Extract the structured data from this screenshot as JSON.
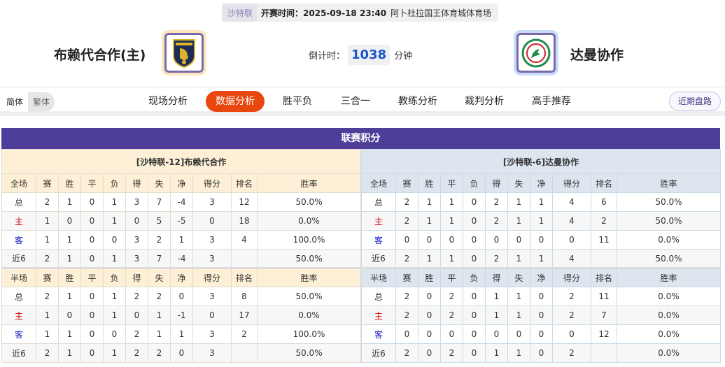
{
  "match": {
    "league": "沙特联",
    "kickoff": "开赛时间：2025-09-18 23:40",
    "venue": "阿卜杜拉国王体育城体育场"
  },
  "home": {
    "name": "布赖代合作(主)",
    "logo": "Al-Taawoun crest"
  },
  "away": {
    "name": "达曼协作",
    "logo": "Al-Ettifaq crest"
  },
  "countdown": {
    "label": "倒计时：",
    "value": "1038",
    "unit": "分钟"
  },
  "lang": {
    "simplified": "简体",
    "traditional": "繁体"
  },
  "tabs": [
    "现场分析",
    "数据分析",
    "胜平负",
    "三合一",
    "教练分析",
    "裁判分析",
    "高手推荐"
  ],
  "active_tab": "数据分析",
  "recent_button": "近期盘路",
  "standings": {
    "title": "联赛积分",
    "columns": [
      "赛",
      "胜",
      "平",
      "负",
      "得",
      "失",
      "净",
      "得分",
      "排名",
      "胜率"
    ],
    "full_label": "全场",
    "half_label": "半场",
    "row_labels": [
      "总",
      "主",
      "客",
      "近6"
    ],
    "tables": [
      {
        "team_label": "[沙特联-12]布赖代合作",
        "full": [
          [
            "2",
            "1",
            "0",
            "1",
            "3",
            "7",
            "-4",
            "3",
            "12",
            "50.0%"
          ],
          [
            "1",
            "0",
            "0",
            "1",
            "0",
            "5",
            "-5",
            "0",
            "18",
            "0.0%"
          ],
          [
            "1",
            "1",
            "0",
            "0",
            "3",
            "2",
            "1",
            "3",
            "4",
            "100.0%"
          ],
          [
            "2",
            "1",
            "0",
            "1",
            "3",
            "7",
            "-4",
            "3",
            "",
            "50.0%"
          ]
        ],
        "half": [
          [
            "2",
            "1",
            "0",
            "1",
            "2",
            "2",
            "0",
            "3",
            "8",
            "50.0%"
          ],
          [
            "1",
            "0",
            "0",
            "1",
            "0",
            "1",
            "-1",
            "0",
            "17",
            "0.0%"
          ],
          [
            "1",
            "1",
            "0",
            "0",
            "2",
            "1",
            "1",
            "3",
            "2",
            "100.0%"
          ],
          [
            "2",
            "1",
            "0",
            "1",
            "2",
            "2",
            "0",
            "3",
            "",
            "50.0%"
          ]
        ]
      },
      {
        "team_label": "[沙特联-6]达曼协作",
        "full": [
          [
            "2",
            "1",
            "1",
            "0",
            "2",
            "1",
            "1",
            "4",
            "6",
            "50.0%"
          ],
          [
            "2",
            "1",
            "1",
            "0",
            "2",
            "1",
            "1",
            "4",
            "2",
            "50.0%"
          ],
          [
            "0",
            "0",
            "0",
            "0",
            "0",
            "0",
            "0",
            "0",
            "11",
            "0.0%"
          ],
          [
            "2",
            "1",
            "1",
            "0",
            "2",
            "1",
            "1",
            "4",
            "",
            "50.0%"
          ]
        ],
        "half": [
          [
            "2",
            "0",
            "2",
            "0",
            "1",
            "1",
            "0",
            "2",
            "11",
            "0.0%"
          ],
          [
            "2",
            "0",
            "2",
            "0",
            "1",
            "1",
            "0",
            "2",
            "7",
            "0.0%"
          ],
          [
            "0",
            "0",
            "0",
            "0",
            "0",
            "0",
            "0",
            "0",
            "12",
            "0.0%"
          ],
          [
            "2",
            "0",
            "2",
            "0",
            "1",
            "1",
            "0",
            "2",
            "",
            "0.0%"
          ]
        ]
      }
    ]
  }
}
